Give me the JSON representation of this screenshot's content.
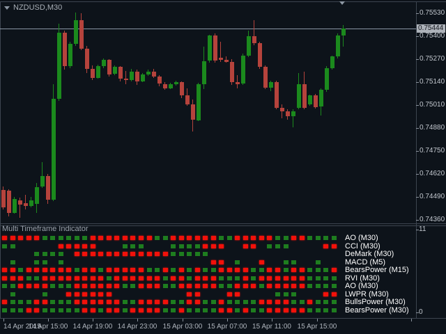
{
  "header": {
    "symbol_period": "NZDUSD,M30"
  },
  "colors": {
    "background": "#0d131a",
    "candle_up": "#1b8a1d",
    "candle_down": "#b5433c",
    "square_red": "#f2110a",
    "square_green": "#1e7d1f",
    "axis_text": "#c2c7ce",
    "row_label_text": "#ffffff",
    "border": "#3d4550",
    "current_price_line": "#8a96a4",
    "price_tag_bg": "#adb2b9"
  },
  "indicator_panel": {
    "title": "Multi Timeframe Indicator",
    "scale_top": "11",
    "scale_bottom": "0"
  },
  "chart_data": {
    "type": "candlestick",
    "symbol": "NZDUSD",
    "timeframe": "M30",
    "grid": "off",
    "ylim": [
      0.74336,
      0.75605
    ],
    "current_price": "0.75444",
    "price_ticks": [
      "0.75530",
      "0.75400",
      "0.75270",
      "0.75140",
      "0.75010",
      "0.74880",
      "0.74750",
      "0.74620",
      "0.74490",
      "0.74360"
    ],
    "time_ticks": {
      "labels": [
        "14 Apr 2015",
        "14 Apr 15:00",
        "14 Apr 19:00",
        "14 Apr 23:00",
        "15 Apr 03:00",
        "15 Apr 07:00",
        "15 Apr 11:00",
        "15 Apr 15:00"
      ],
      "label_centers": [
        32,
        69,
        133,
        197,
        262,
        326,
        390,
        455
      ],
      "tick_positions": [
        5,
        69,
        133,
        197,
        262,
        326,
        390,
        455,
        590
      ]
    },
    "candles": [
      [
        0.7453,
        0.7455,
        0.7442,
        0.7443
      ],
      [
        0.74525,
        0.74535,
        0.7438,
        0.744
      ],
      [
        0.744,
        0.7449,
        0.74395,
        0.7448
      ],
      [
        0.7447,
        0.74485,
        0.7437,
        0.74445
      ],
      [
        0.74455,
        0.745,
        0.7442,
        0.7444
      ],
      [
        0.7444,
        0.7449,
        0.7443,
        0.7447
      ],
      [
        0.7445,
        0.7457,
        0.744,
        0.74545
      ],
      [
        0.7455,
        0.74685,
        0.7454,
        0.7461
      ],
      [
        0.7461,
        0.7462,
        0.7445,
        0.74475
      ],
      [
        0.74475,
        0.7513,
        0.74465,
        0.75045
      ],
      [
        0.75045,
        0.7547,
        0.75035,
        0.7542
      ],
      [
        0.7542,
        0.7543,
        0.7521,
        0.7523
      ],
      [
        0.7523,
        0.7537,
        0.7522,
        0.75355
      ],
      [
        0.75355,
        0.75535,
        0.75345,
        0.7549
      ],
      [
        0.7549,
        0.7553,
        0.7532,
        0.7533
      ],
      [
        0.7533,
        0.75345,
        0.7519,
        0.75215
      ],
      [
        0.75215,
        0.75235,
        0.7515,
        0.75165
      ],
      [
        0.75165,
        0.7524,
        0.7516,
        0.7523
      ],
      [
        0.7523,
        0.75275,
        0.7522,
        0.75265
      ],
      [
        0.75265,
        0.7527,
        0.7517,
        0.75185
      ],
      [
        0.75185,
        0.75235,
        0.7518,
        0.75225
      ],
      [
        0.75225,
        0.7523,
        0.75145,
        0.7516
      ],
      [
        0.7516,
        0.75205,
        0.7513,
        0.7515
      ],
      [
        0.7515,
        0.75215,
        0.75145,
        0.752
      ],
      [
        0.752,
        0.7521,
        0.75125,
        0.75145
      ],
      [
        0.75145,
        0.7519,
        0.7514,
        0.75185
      ],
      [
        0.75185,
        0.7521,
        0.75175,
        0.752
      ],
      [
        0.752,
        0.75215,
        0.75165,
        0.7517
      ],
      [
        0.7517,
        0.7518,
        0.75115,
        0.7513
      ],
      [
        0.7513,
        0.7514,
        0.75095,
        0.75105
      ],
      [
        0.75105,
        0.75135,
        0.751,
        0.7513
      ],
      [
        0.7513,
        0.7515,
        0.7512,
        0.7514
      ],
      [
        0.7514,
        0.75145,
        0.7505,
        0.75065
      ],
      [
        0.75065,
        0.75105,
        0.75005,
        0.75015
      ],
      [
        0.75015,
        0.7504,
        0.7486,
        0.74925
      ],
      [
        0.74925,
        0.75135,
        0.7492,
        0.7513
      ],
      [
        0.7513,
        0.7534,
        0.751,
        0.7526
      ],
      [
        0.7526,
        0.7541,
        0.7525,
        0.75405
      ],
      [
        0.75405,
        0.75415,
        0.7525,
        0.7526
      ],
      [
        0.7528,
        0.7537,
        0.75255,
        0.75265
      ],
      [
        0.75265,
        0.75285,
        0.7525,
        0.75255
      ],
      [
        0.75255,
        0.7527,
        0.75125,
        0.7514
      ],
      [
        0.7514,
        0.7518,
        0.75105,
        0.7513
      ],
      [
        0.7513,
        0.753,
        0.75125,
        0.7529
      ],
      [
        0.7529,
        0.7543,
        0.7528,
        0.754
      ],
      [
        0.754,
        0.7549,
        0.7535,
        0.7536
      ],
      [
        0.7536,
        0.7537,
        0.75215,
        0.75225
      ],
      [
        0.75225,
        0.75235,
        0.751,
        0.7511
      ],
      [
        0.7511,
        0.7515,
        0.7509,
        0.7514
      ],
      [
        0.7514,
        0.7515,
        0.74985,
        0.74995
      ],
      [
        0.74995,
        0.75015,
        0.74935,
        0.74975
      ],
      [
        0.74975,
        0.74985,
        0.74925,
        0.74945
      ],
      [
        0.74945,
        0.74985,
        0.74885,
        0.74975
      ],
      [
        0.74995,
        0.7519,
        0.74985,
        0.7513
      ],
      [
        0.7513,
        0.752,
        0.74985,
        0.74995
      ],
      [
        0.75015,
        0.7507,
        0.75005,
        0.75065
      ],
      [
        0.75065,
        0.75075,
        0.7499,
        0.75
      ],
      [
        0.75,
        0.75105,
        0.7495,
        0.75095
      ],
      [
        0.75095,
        0.7523,
        0.75085,
        0.7522
      ],
      [
        0.7522,
        0.7529,
        0.7521,
        0.75285
      ],
      [
        0.75285,
        0.75415,
        0.75275,
        0.75405
      ],
      [
        0.75405,
        0.75465,
        0.7534,
        0.75444
      ]
    ],
    "indicator_rows": [
      {
        "label": "AO (M30)",
        "pattern": "RRRRRGGGGGGRRRRRRRRGGRRRRRRGGRRRRRGGRRGGGG"
      },
      {
        "label": "CCI (M30)",
        "pattern": "GG.....RRRRR...GGG...GGGGRRR..RR.GGG....RR"
      },
      {
        "label": "DeMark (M30)",
        "pattern": "....GGGG.RRRRRRRRRRRRGGGGG................"
      },
      {
        "label": "MACD (M5)",
        "pattern": ".G..GG.G..................RR.G..R..GG..G.."
      },
      {
        "label": "BearsPower (M15)",
        "pattern": "RRGRRRRRRGRRGRRRRRGGRGRGRGGRRRRGGRRGRRGGGR"
      },
      {
        "label": "RVI (M30)",
        "pattern": "RRRGGRRRRRRRRGRRRRRRGRRGRRRGGGRGRRRRRRGGGG"
      },
      {
        "label": "AO (M30)",
        "pattern": "GGRRRRGGGRRRRRRGGRRRGGRRRRRGGRRRGRRRRRGGGG"
      },
      {
        "label": "LWPR (M30)",
        "pattern": ".G...G..RRRRRR.........RR...RR....GGG...RR"
      },
      {
        "label": "BullsPower (M30)",
        "pattern": "RGGGRRGGGRRRRRRGGRRRRGGRRGGRGGGGRRRRGGRGGG"
      },
      {
        "label": "BearsPower (M30)",
        "pattern": "GGGRRGGGGGRRGRRGRRRRGGRGGGGRRGRGGRRRRRGGGG"
      }
    ]
  }
}
